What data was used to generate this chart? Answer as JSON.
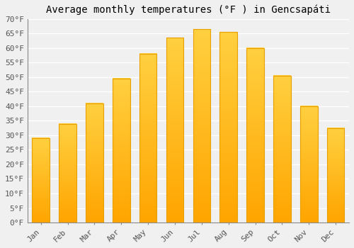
{
  "title": "Average monthly temperatures (°F ) in Gencsapáti",
  "months": [
    "Jan",
    "Feb",
    "Mar",
    "Apr",
    "May",
    "Jun",
    "Jul",
    "Aug",
    "Sep",
    "Oct",
    "Nov",
    "Dec"
  ],
  "values": [
    29,
    34,
    41,
    49.5,
    58,
    63.5,
    66.5,
    65.5,
    60,
    50.5,
    40,
    32.5
  ],
  "bar_color_top": "#FFD040",
  "bar_color_bottom": "#FFA500",
  "bar_border_color": "#E8A000",
  "background_color": "#f0f0f0",
  "plot_bg_color": "#f0f0f0",
  "grid_color": "#ffffff",
  "ylim": [
    0,
    70
  ],
  "ytick_step": 5,
  "title_fontsize": 10,
  "tick_fontsize": 8,
  "n_gradient_steps": 100
}
